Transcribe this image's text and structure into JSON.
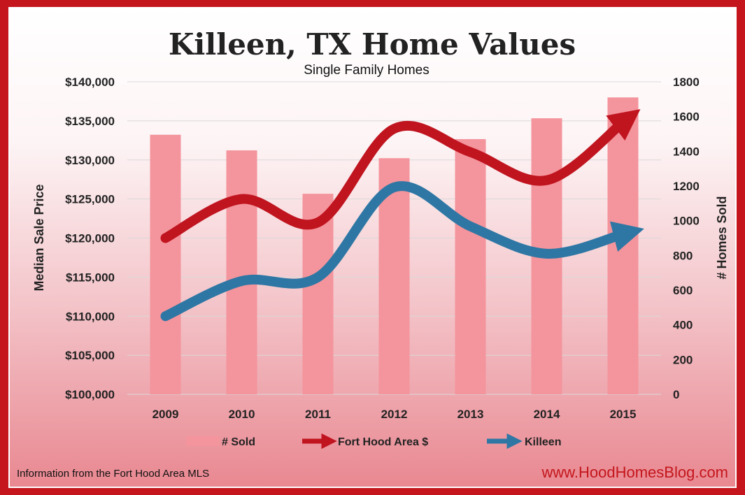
{
  "chart_data": {
    "type": "bar",
    "title": "Killeen, TX Home Values",
    "subtitle": "Single Family Homes",
    "categories": [
      "2009",
      "2010",
      "2011",
      "2012",
      "2013",
      "2014",
      "2015"
    ],
    "y_left": {
      "label": "Median Sale Price",
      "range": [
        100000,
        140000
      ],
      "ticks": [
        "$100,000",
        "$105,000",
        "$110,000",
        "$115,000",
        "$120,000",
        "$125,000",
        "$130,000",
        "$135,000",
        "$140,000"
      ]
    },
    "y_right": {
      "label": "# Homes Sold",
      "range": [
        0,
        1800
      ],
      "ticks": [
        "0",
        "200",
        "400",
        "600",
        "800",
        "1000",
        "1200",
        "1400",
        "1600",
        "1800"
      ]
    },
    "grid": true,
    "legend_position": "bottom",
    "series": [
      {
        "name": "# Sold",
        "kind": "bar",
        "axis": "right",
        "color": "#f4949c",
        "values": [
          1495,
          1405,
          1155,
          1360,
          1470,
          1590,
          1710
        ]
      },
      {
        "name": "Fort Hood Area $",
        "kind": "line",
        "axis": "left",
        "color": "#c0141f",
        "values": [
          120000,
          125000,
          122000,
          134000,
          131000,
          127400,
          134800
        ]
      },
      {
        "name": "Killeen",
        "kind": "line",
        "axis": "left",
        "color": "#2e77a4",
        "values": [
          110000,
          114500,
          115000,
          126500,
          121500,
          118000,
          120500
        ]
      }
    ]
  },
  "footer": {
    "source": "Information from the Fort Hood Area MLS",
    "website": "www.HoodHomesBlog.com"
  },
  "colors": {
    "frame": "#c4161c",
    "text": "#222222"
  }
}
